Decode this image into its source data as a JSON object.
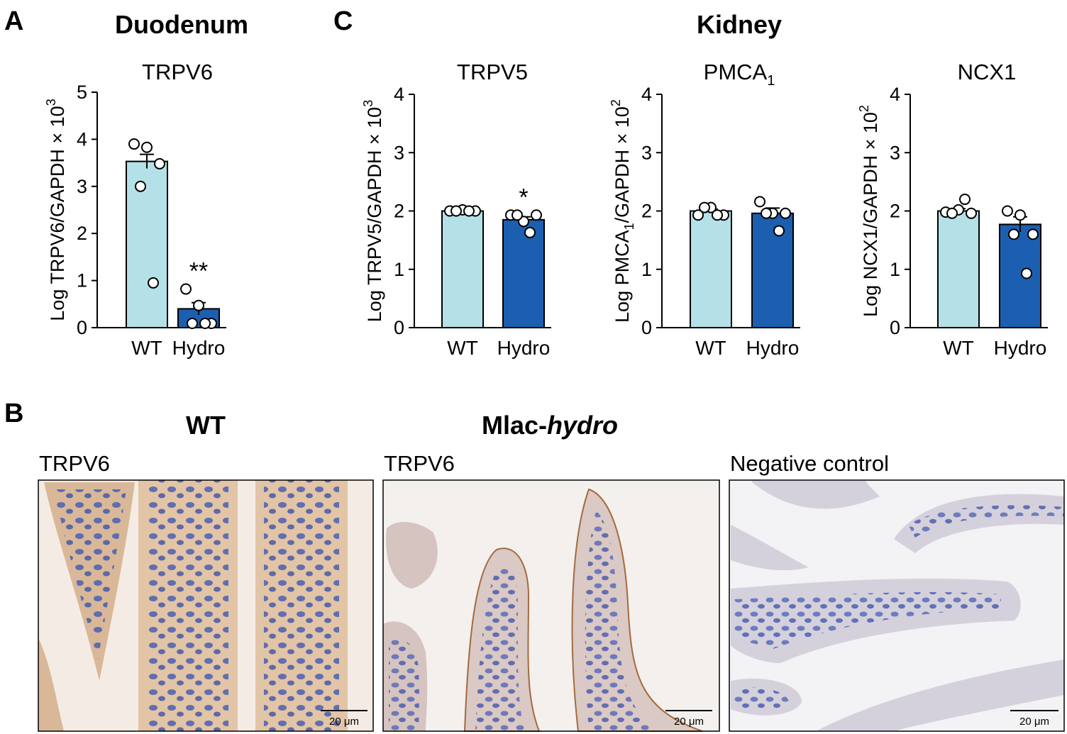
{
  "panels": {
    "A": "A",
    "B": "B",
    "C": "C"
  },
  "panel_a_title": "Duodenum",
  "panel_c_title": "Kidney",
  "colors": {
    "wt_bar": "#b4e1e8",
    "hydro_bar": "#1c5fb0",
    "point_fill": "#ffffff",
    "stroke": "#000000"
  },
  "chart_data": [
    {
      "type": "bar",
      "title": "TRPV6",
      "ylabel": "Log TRPV6/GAPDH × 10³",
      "ylabel_main": "Log TRPV6/GAPDH × 10",
      "ylabel_sup": "3",
      "ylim": [
        0,
        5
      ],
      "yticks": [
        0,
        1,
        2,
        3,
        4,
        5
      ],
      "categories": [
        "WT",
        "Hydro"
      ],
      "values": [
        3.53,
        0.4
      ],
      "sem": [
        0.15,
        0.13
      ],
      "points": [
        [
          3.9,
          3.83,
          3.48,
          3.0,
          0.95
        ],
        [
          0.82,
          0.47,
          0.09,
          0.09,
          0.09
        ]
      ],
      "significance": [
        "",
        "**"
      ]
    },
    {
      "type": "bar",
      "title": "TRPV5",
      "ylabel": "Log TRPV5/GAPDH × 10³",
      "ylabel_main": "Log TRPV5/GAPDH × 10",
      "ylabel_sup": "3",
      "ylim": [
        0,
        4
      ],
      "yticks": [
        0,
        1,
        2,
        3,
        4
      ],
      "categories": [
        "WT",
        "Hydro"
      ],
      "values": [
        2.0,
        1.85
      ],
      "sem": [
        0.02,
        0.05
      ],
      "points": [
        [
          2.0,
          2.02,
          2.0,
          2.0,
          2.0
        ],
        [
          1.93,
          1.82,
          1.93,
          1.93,
          1.63
        ]
      ],
      "significance": [
        "",
        "*"
      ]
    },
    {
      "type": "bar",
      "title": "PMCA1",
      "title_main": "PMCA",
      "title_sub": "1",
      "ylabel": "Log PMCA1/GAPDH × 10²",
      "ylabel_main": "Log PMCA",
      "ylabel_sub": "1",
      "ylabel_rest": "/GAPDH × 10",
      "ylabel_sup": "2",
      "ylim": [
        0,
        4
      ],
      "yticks": [
        0,
        1,
        2,
        3,
        4
      ],
      "categories": [
        "WT",
        "Hydro"
      ],
      "values": [
        2.0,
        1.96
      ],
      "sem": [
        0.03,
        0.09
      ],
      "points": [
        [
          1.93,
          2.06,
          1.93,
          2.06,
          1.93
        ],
        [
          2.16,
          1.96,
          1.96,
          1.96,
          1.66
        ]
      ],
      "significance": [
        "",
        ""
      ]
    },
    {
      "type": "bar",
      "title": "NCX1",
      "ylabel": "Log NCX1/GAPDH × 10²",
      "ylabel_main": "Log NCX1/GAPDH × 10",
      "ylabel_sup": "2",
      "ylim": [
        0,
        4
      ],
      "yticks": [
        0,
        1,
        2,
        3,
        4
      ],
      "categories": [
        "WT",
        "Hydro"
      ],
      "values": [
        2.0,
        1.77
      ],
      "sem": [
        0.04,
        0.13
      ],
      "points": [
        [
          1.98,
          2.02,
          1.96,
          1.96,
          2.2
        ],
        [
          2.0,
          1.93,
          1.6,
          1.6,
          0.93
        ]
      ],
      "significance": [
        "",
        ""
      ]
    }
  ],
  "panel_b": {
    "col_wt_title": "WT",
    "col_hydro_title_main": "Mlac-",
    "col_hydro_title_italic": "hydro",
    "images": [
      {
        "label": "TRPV6",
        "scale": "20 μm"
      },
      {
        "label": "TRPV6",
        "scale": "20 μm"
      },
      {
        "label": "Negative control",
        "scale": "20 μm"
      }
    ]
  }
}
